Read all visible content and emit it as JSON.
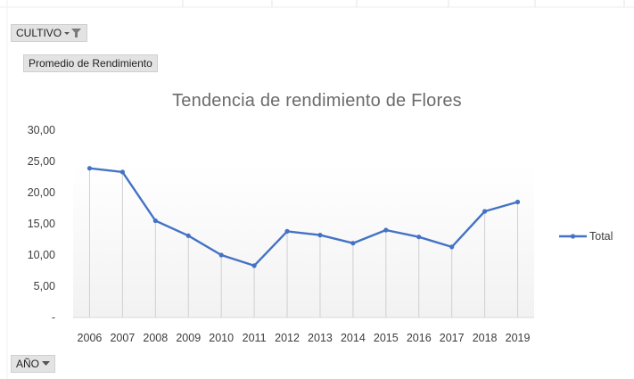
{
  "fields": {
    "cultivo_label": "CULTIVO",
    "promedio_label": "Promedio de Rendimiento",
    "anio_label": "AÑO"
  },
  "colors": {
    "series": "#4472c4",
    "plot_band": "#f2f2f2",
    "drop_lines": "#d0d0d0"
  },
  "chart_data": {
    "type": "line",
    "title": "Tendencia de rendimiento de Flores",
    "xlabel": "",
    "ylabel": "",
    "categories": [
      "2006",
      "2007",
      "2008",
      "2009",
      "2010",
      "2011",
      "2012",
      "2013",
      "2014",
      "2015",
      "2016",
      "2017",
      "2018",
      "2019"
    ],
    "series": [
      {
        "name": "Total",
        "values": [
          23.9,
          23.3,
          15.5,
          13.1,
          10.0,
          8.3,
          13.8,
          13.2,
          11.9,
          14.0,
          12.9,
          11.3,
          17.0,
          18.5
        ]
      }
    ],
    "ylim": [
      0,
      30
    ],
    "y_ticks": [
      0,
      5,
      10,
      15,
      20,
      25,
      30
    ],
    "y_tick_labels": [
      "-",
      "5,00",
      "10,00",
      "15,00",
      "20,00",
      "25,00",
      "30,00"
    ],
    "grid": false,
    "drop_lines": true,
    "legend": "right"
  }
}
